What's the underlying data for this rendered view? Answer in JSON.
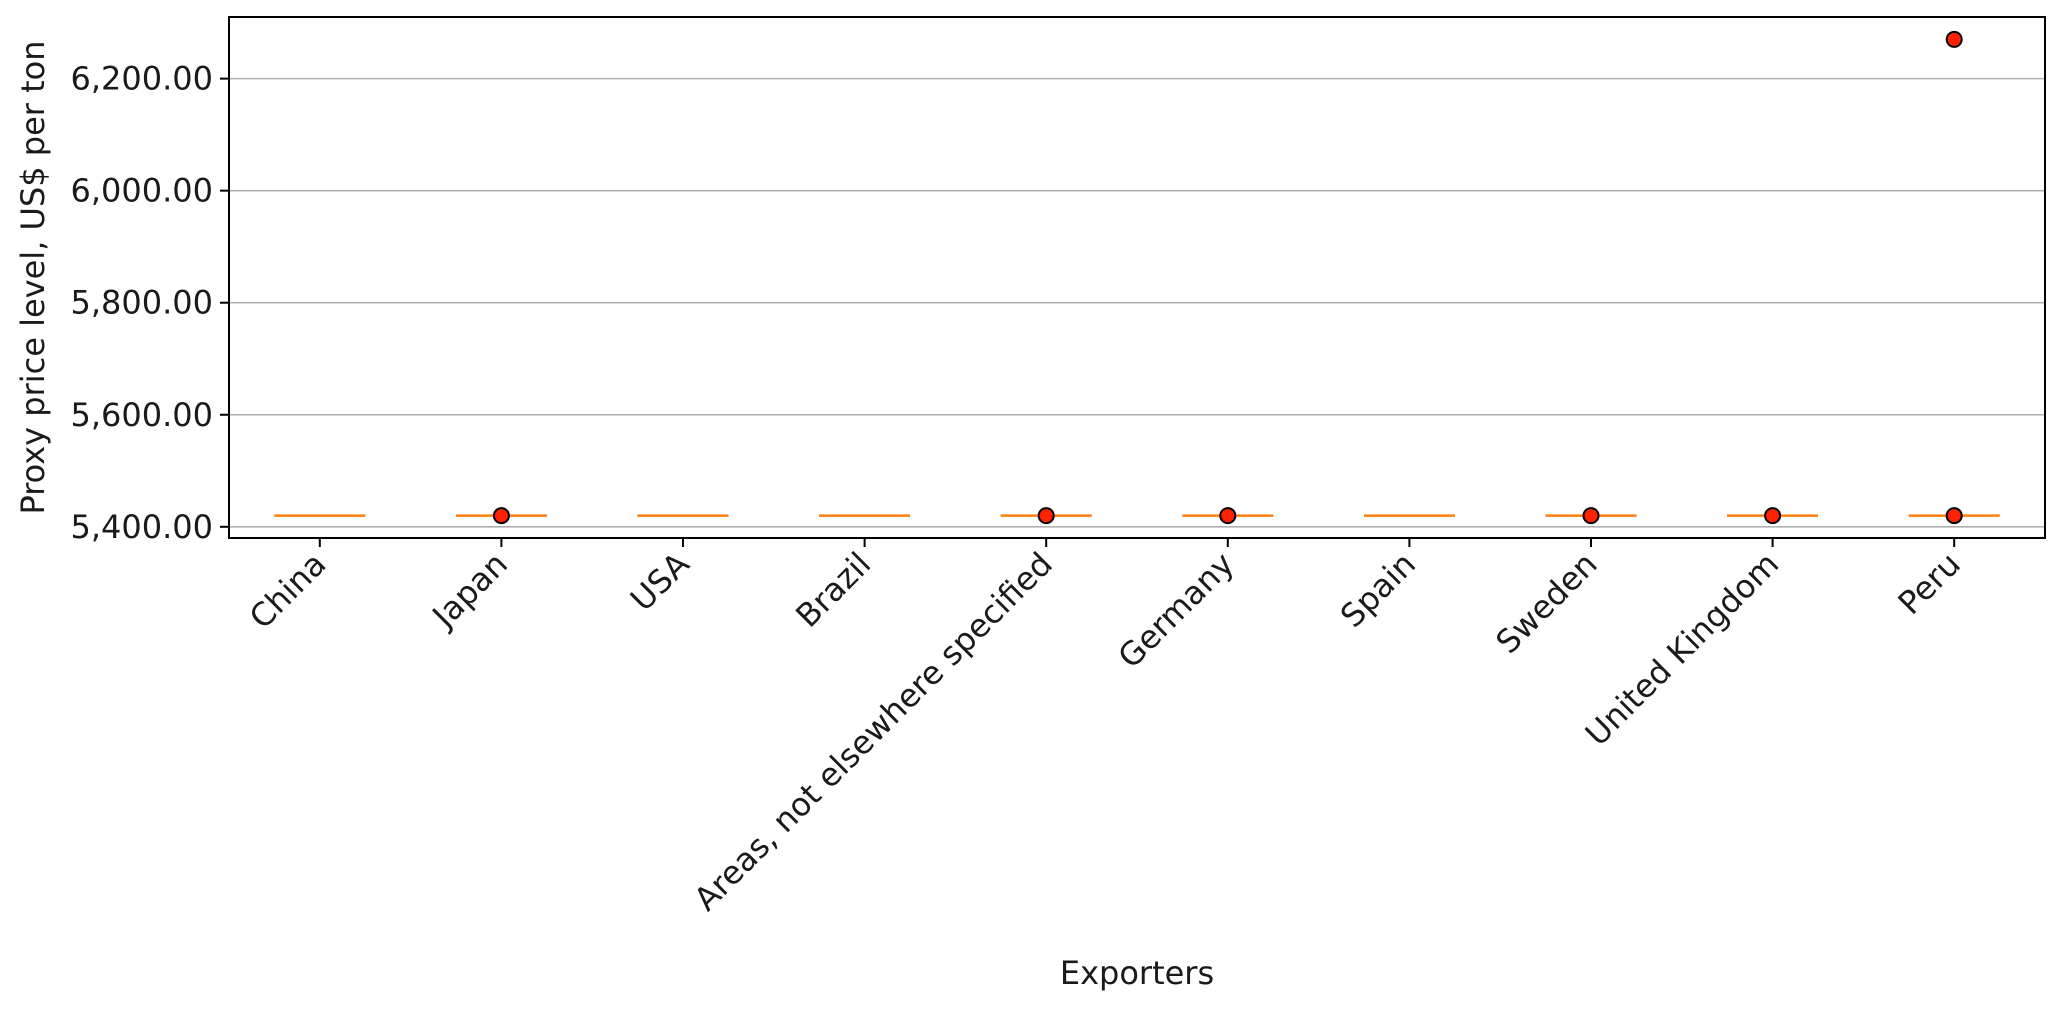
{
  "chart_data": {
    "type": "box",
    "title": "",
    "xlabel": "Exporters",
    "ylabel": "Proxy price level, US$ per ton",
    "categories": [
      "China",
      "Japan",
      "USA",
      "Brazil",
      "Areas, not elsewhere specified",
      "Germany",
      "Spain",
      "Sweden",
      "United Kingdom",
      "Peru"
    ],
    "median": [
      5420,
      5420,
      5420,
      5420,
      5420,
      5420,
      5420,
      5420,
      5420,
      5420
    ],
    "outliers": [
      [],
      [
        5420
      ],
      [],
      [],
      [
        5420
      ],
      [
        5420
      ],
      [],
      [
        5420
      ],
      [
        5420
      ],
      [
        5420,
        6270
      ]
    ],
    "ylim": [
      5380,
      6310
    ],
    "yticks": [
      5400,
      5600,
      5800,
      6000,
      6200
    ],
    "ytick_labels": [
      "5,400.00",
      "5,600.00",
      "5,800.00",
      "6,000.00",
      "6,200.00"
    ],
    "grid": "y",
    "colors": {
      "median_line": "#ff7f0e",
      "outlier_fill": "#ff2200",
      "outlier_edge": "#000000",
      "grid": "#b0b0b0",
      "axes": "#000000"
    }
  }
}
